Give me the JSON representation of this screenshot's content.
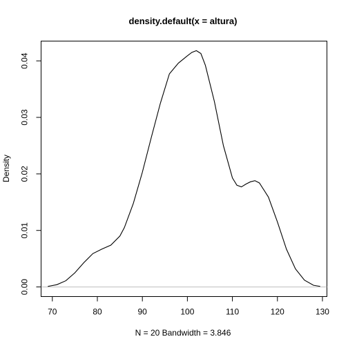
{
  "chart_data": {
    "type": "line",
    "title": "density.default(x = altura)",
    "xlabel": "N = 20   Bandwidth = 3.846",
    "ylabel": "Density",
    "xlim": [
      67.5,
      131
    ],
    "ylim": [
      -0.0017,
      0.0435
    ],
    "x_ticks": [
      "70",
      "80",
      "90",
      "100",
      "110",
      "120",
      "130"
    ],
    "y_ticks": [
      "0.00",
      "0.01",
      "0.02",
      "0.03",
      "0.04"
    ],
    "baseline": 0,
    "grid": false,
    "colors": {
      "line": "#000000",
      "baseline": "#bebebe",
      "box": "#000000"
    },
    "series": [
      {
        "x": [
          69,
          71,
          73,
          75,
          77,
          79,
          81,
          83,
          85,
          86,
          88,
          90,
          92,
          94,
          96,
          98,
          100,
          101,
          102,
          103,
          104,
          106,
          108,
          110,
          111,
          112,
          113,
          114,
          115,
          116,
          118,
          120,
          122,
          124,
          126,
          128,
          129.5
        ],
        "y": [
          0.0001,
          0.0004,
          0.0011,
          0.0025,
          0.0043,
          0.0059,
          0.0067,
          0.0074,
          0.009,
          0.0105,
          0.0148,
          0.0203,
          0.0265,
          0.0325,
          0.0377,
          0.0396,
          0.0409,
          0.0415,
          0.0418,
          0.0413,
          0.0392,
          0.0328,
          0.025,
          0.0193,
          0.018,
          0.0177,
          0.0182,
          0.0186,
          0.0188,
          0.0184,
          0.0159,
          0.0115,
          0.0067,
          0.0032,
          0.0012,
          0.0003,
          0.0001
        ]
      }
    ]
  }
}
